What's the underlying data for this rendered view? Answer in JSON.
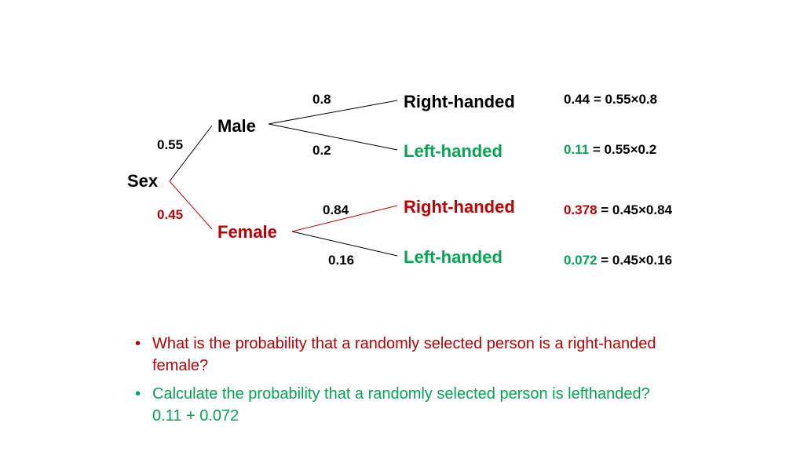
{
  "colors": {
    "black": "#000000",
    "green": "#00a651",
    "red": "#c00000"
  },
  "tree": {
    "root": "Sex",
    "male": {
      "label": "Male",
      "prob": "0.55"
    },
    "female": {
      "label": "Female",
      "prob": "0.45"
    },
    "male_right": {
      "label": "Right-handed",
      "prob": "0.8",
      "result_value": "0.44",
      "result_expr": " = 0.55×0.8"
    },
    "male_left": {
      "label": "Left-handed",
      "prob": "0.2",
      "result_value": "0.11",
      "result_expr": " = 0.55×0.2"
    },
    "female_right": {
      "label": "Right-handed",
      "prob": "0.84",
      "result_value": "0.378",
      "result_expr": " = 0.45×0.84"
    },
    "female_left": {
      "label": "Left-handed",
      "prob": "0.16",
      "result_value": "0.072",
      "result_expr": " = 0.45×0.16"
    }
  },
  "questions": [
    {
      "text": "What is the probability that a randomly selected person is a right-handed female?"
    },
    {
      "text": "Calculate the probability that a randomly selected person is lefthanded?   0.11 + 0.072"
    }
  ]
}
